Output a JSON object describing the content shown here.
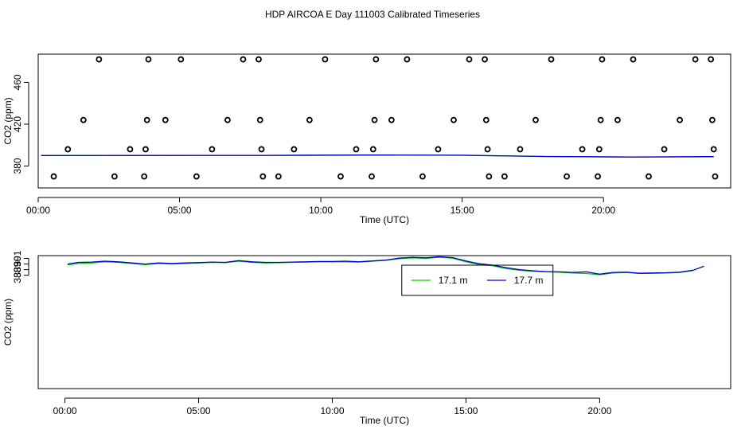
{
  "title": "HDP AIRCOA E  Day 111003  Calibrated Timeseries",
  "colors": {
    "background": "#ffffff",
    "axis": "#000000",
    "green": "#00cc00",
    "blue": "#0000cc"
  },
  "chart_data": [
    {
      "type": "scatter",
      "xlabel": "Time (UTC)",
      "ylabel": "CO2 (ppm)",
      "xlim": [
        0,
        24.5
      ],
      "ylim": [
        359,
        487
      ],
      "xticks": [
        0,
        5,
        10,
        15,
        20
      ],
      "xtick_labels": [
        "00:00",
        "05:00",
        "10:00",
        "15:00",
        "20:00"
      ],
      "yticks": [
        380,
        420,
        460
      ],
      "ytick_labels": [
        "380",
        "420",
        "460"
      ],
      "grid": false,
      "calibration_points": [
        {
          "x": 0.55,
          "y": 370
        },
        {
          "x": 1.05,
          "y": 396
        },
        {
          "x": 1.6,
          "y": 424
        },
        {
          "x": 2.15,
          "y": 482
        },
        {
          "x": 2.7,
          "y": 370
        },
        {
          "x": 3.25,
          "y": 396
        },
        {
          "x": 3.75,
          "y": 370
        },
        {
          "x": 3.8,
          "y": 396
        },
        {
          "x": 3.85,
          "y": 424
        },
        {
          "x": 3.9,
          "y": 482
        },
        {
          "x": 4.5,
          "y": 424
        },
        {
          "x": 5.05,
          "y": 482
        },
        {
          "x": 5.6,
          "y": 370
        },
        {
          "x": 6.15,
          "y": 396
        },
        {
          "x": 6.7,
          "y": 424
        },
        {
          "x": 7.25,
          "y": 482
        },
        {
          "x": 7.8,
          "y": 482
        },
        {
          "x": 7.85,
          "y": 424
        },
        {
          "x": 7.9,
          "y": 396
        },
        {
          "x": 7.95,
          "y": 370
        },
        {
          "x": 8.5,
          "y": 370
        },
        {
          "x": 9.05,
          "y": 396
        },
        {
          "x": 9.6,
          "y": 424
        },
        {
          "x": 10.15,
          "y": 482
        },
        {
          "x": 10.7,
          "y": 370
        },
        {
          "x": 11.25,
          "y": 396
        },
        {
          "x": 11.8,
          "y": 370
        },
        {
          "x": 11.85,
          "y": 396
        },
        {
          "x": 11.9,
          "y": 424
        },
        {
          "x": 11.95,
          "y": 482
        },
        {
          "x": 12.5,
          "y": 424
        },
        {
          "x": 13.05,
          "y": 482
        },
        {
          "x": 13.6,
          "y": 370
        },
        {
          "x": 14.15,
          "y": 396
        },
        {
          "x": 14.7,
          "y": 424
        },
        {
          "x": 15.25,
          "y": 482
        },
        {
          "x": 15.8,
          "y": 482
        },
        {
          "x": 15.85,
          "y": 424
        },
        {
          "x": 15.9,
          "y": 396
        },
        {
          "x": 15.95,
          "y": 370
        },
        {
          "x": 16.5,
          "y": 370
        },
        {
          "x": 17.05,
          "y": 396
        },
        {
          "x": 17.6,
          "y": 424
        },
        {
          "x": 18.15,
          "y": 482
        },
        {
          "x": 18.7,
          "y": 370
        },
        {
          "x": 19.25,
          "y": 396
        },
        {
          "x": 19.8,
          "y": 370
        },
        {
          "x": 19.85,
          "y": 396
        },
        {
          "x": 19.9,
          "y": 424
        },
        {
          "x": 19.95,
          "y": 482
        },
        {
          "x": 20.5,
          "y": 424
        },
        {
          "x": 21.05,
          "y": 482
        },
        {
          "x": 21.6,
          "y": 370
        },
        {
          "x": 22.15,
          "y": 396
        },
        {
          "x": 22.7,
          "y": 424
        },
        {
          "x": 23.25,
          "y": 482
        },
        {
          "x": 23.8,
          "y": 482
        },
        {
          "x": 23.85,
          "y": 424
        },
        {
          "x": 23.9,
          "y": 396
        },
        {
          "x": 23.95,
          "y": 370
        }
      ],
      "series": [
        {
          "color": "#00cc00",
          "x": [
            0.1,
            4,
            8,
            12,
            15,
            18,
            21,
            23.9
          ],
          "y": [
            389.9,
            390.0,
            390.1,
            390.4,
            390.2,
            389.0,
            388.5,
            388.7
          ]
        },
        {
          "color": "#0000cc",
          "x": [
            0.1,
            4,
            8,
            12,
            15,
            18,
            21,
            23.9
          ],
          "y": [
            390.0,
            390.1,
            390.2,
            390.5,
            390.3,
            389.1,
            388.6,
            389.0
          ]
        }
      ]
    },
    {
      "type": "line",
      "xlabel": "Time (UTC)",
      "ylabel": "CO2 (ppm)",
      "xlim": [
        -1,
        24.9
      ],
      "ylim": [
        367.8,
        391.5
      ],
      "xticks": [
        0,
        5,
        10,
        15,
        20
      ],
      "xtick_labels": [
        "00:00",
        "05:00",
        "10:00",
        "15:00",
        "20:00"
      ],
      "yticks": [
        388,
        389,
        390,
        391
      ],
      "ytick_labels": [
        "388",
        "389",
        "390",
        "391"
      ],
      "grid": false,
      "legend": {
        "placement": "top-center",
        "entries": [
          {
            "label": "17.1 m",
            "color": "#00cc00"
          },
          {
            "label": "17.7 m",
            "color": "#0000cc"
          }
        ]
      },
      "series": [
        {
          "name": "17.1 m",
          "color": "#00cc00",
          "x": [
            0.1,
            0.5,
            1,
            1.5,
            2,
            2.5,
            3,
            3.5,
            4,
            4.5,
            5,
            5.5,
            6,
            6.5,
            7,
            7.5,
            8,
            8.5,
            9,
            9.5,
            10,
            10.5,
            11,
            11.5,
            12,
            12.5,
            13,
            13.5,
            14,
            14.5,
            15,
            15.5,
            16,
            16.5,
            17,
            17.5,
            18,
            18.5,
            19,
            19.5,
            20,
            20.5,
            21,
            21.5,
            22,
            22.5,
            23,
            23.5
          ],
          "y": [
            389.85,
            390.1,
            390.2,
            390.4,
            390.3,
            390.1,
            389.9,
            390.1,
            390.0,
            390.1,
            390.2,
            390.3,
            390.25,
            390.5,
            390.3,
            390.2,
            390.25,
            390.3,
            390.35,
            390.4,
            390.4,
            390.4,
            390.35,
            390.5,
            390.65,
            390.95,
            391.1,
            391.0,
            391.2,
            391.05,
            390.4,
            389.9,
            389.7,
            389.2,
            388.9,
            388.7,
            388.6,
            388.55,
            388.4,
            388.3,
            388.1,
            388.4,
            388.5,
            388.3,
            388.35,
            388.4,
            388.5,
            388.85
          ]
        },
        {
          "name": "17.7 m",
          "color": "#0000cc",
          "x": [
            0.1,
            0.5,
            1,
            1.5,
            2,
            2.5,
            3,
            3.5,
            4,
            4.5,
            5,
            5.5,
            6,
            6.5,
            7,
            7.5,
            8,
            8.5,
            9,
            9.5,
            10,
            10.5,
            11,
            11.5,
            12,
            12.5,
            13,
            13.5,
            14,
            14.5,
            15,
            15.5,
            16,
            16.5,
            17,
            17.5,
            18,
            18.5,
            19,
            19.5,
            20,
            20.5,
            21,
            21.5,
            22,
            22.5,
            23,
            23.5,
            23.9
          ],
          "y": [
            390.0,
            390.3,
            390.35,
            390.5,
            390.4,
            390.2,
            390.0,
            390.2,
            390.1,
            390.2,
            390.25,
            390.35,
            390.3,
            390.6,
            390.4,
            390.3,
            390.3,
            390.35,
            390.4,
            390.45,
            390.45,
            390.5,
            390.4,
            390.55,
            390.7,
            391.05,
            391.2,
            391.1,
            391.3,
            391.15,
            390.55,
            390.05,
            389.8,
            389.35,
            389.0,
            388.8,
            388.65,
            388.6,
            388.5,
            388.6,
            388.2,
            388.5,
            388.55,
            388.35,
            388.4,
            388.45,
            388.55,
            388.9,
            389.6
          ]
        }
      ]
    }
  ]
}
